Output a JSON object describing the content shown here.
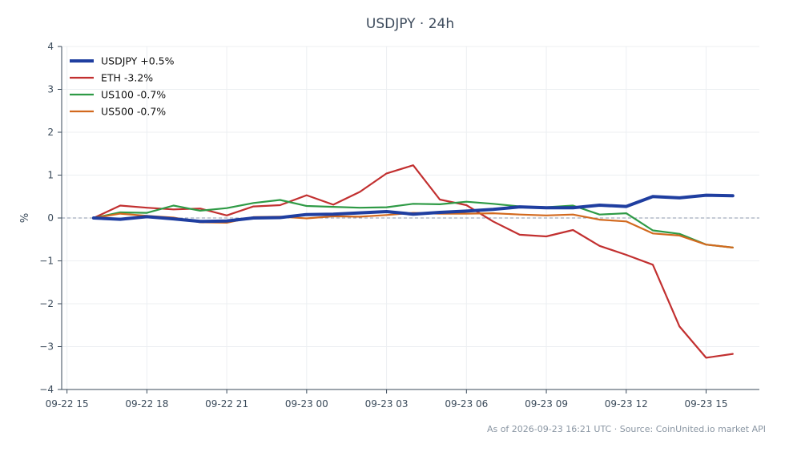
{
  "chart_data": {
    "type": "line",
    "title": "USDJPY · 24h",
    "xlabel": "",
    "ylabel": "%",
    "ylim": [
      -4,
      4
    ],
    "yticks": [
      "−4",
      "−3",
      "−2",
      "−1",
      "0",
      "1",
      "2",
      "3",
      "4"
    ],
    "xlim_hours": [
      -0.2,
      26.0
    ],
    "xticks": [
      {
        "hour": 0,
        "label": "09-22 15"
      },
      {
        "hour": 3,
        "label": "09-22 18"
      },
      {
        "hour": 6,
        "label": "09-22 21"
      },
      {
        "hour": 9,
        "label": "09-23 00"
      },
      {
        "hour": 12,
        "label": "09-23 03"
      },
      {
        "hour": 15,
        "label": "09-23 06"
      },
      {
        "hour": 18,
        "label": "09-23 09"
      },
      {
        "hour": 21,
        "label": "09-23 12"
      },
      {
        "hour": 24,
        "label": "09-23 15"
      }
    ],
    "x_hours": [
      1,
      2,
      3,
      4,
      5,
      6,
      7,
      8,
      9,
      10,
      11,
      12,
      13,
      14,
      15,
      16,
      17,
      18,
      19,
      20,
      21,
      22,
      23,
      24,
      25
    ],
    "baseline": 0,
    "grid": true,
    "legend_position": "top-left",
    "series": [
      {
        "name": "USDJPY +0.5%",
        "color": "#1f3ea0",
        "width": 4,
        "values": [
          0.0,
          -0.03,
          0.03,
          -0.02,
          -0.08,
          -0.07,
          0.0,
          0.01,
          0.08,
          0.09,
          0.12,
          0.15,
          0.09,
          0.13,
          0.16,
          0.2,
          0.26,
          0.24,
          0.24,
          0.3,
          0.27,
          0.5,
          0.47,
          0.53,
          0.52
        ]
      },
      {
        "name": "ETH -3.2%",
        "color": "#c23030",
        "width": 2.2,
        "values": [
          0.0,
          0.29,
          0.24,
          0.2,
          0.22,
          0.06,
          0.27,
          0.3,
          0.53,
          0.31,
          0.61,
          1.04,
          1.23,
          0.43,
          0.3,
          -0.08,
          -0.39,
          -0.43,
          -0.28,
          -0.65,
          -0.86,
          -1.09,
          -2.53,
          -3.26,
          -3.17
        ]
      },
      {
        "name": "US100 -0.7%",
        "color": "#2e9a45",
        "width": 2.2,
        "values": [
          0.0,
          0.13,
          0.12,
          0.29,
          0.17,
          0.23,
          0.35,
          0.42,
          0.28,
          0.26,
          0.24,
          0.25,
          0.33,
          0.32,
          0.38,
          0.33,
          0.27,
          0.25,
          0.29,
          0.08,
          0.11,
          -0.29,
          -0.37,
          -0.62,
          -0.69
        ]
      },
      {
        "name": "US500 -0.7%",
        "color": "#d2691e",
        "width": 2.2,
        "values": [
          0.0,
          0.1,
          0.05,
          0.01,
          -0.1,
          -0.11,
          0.02,
          0.03,
          -0.01,
          0.04,
          0.03,
          0.07,
          0.12,
          0.1,
          0.1,
          0.11,
          0.08,
          0.06,
          0.08,
          -0.04,
          -0.08,
          -0.36,
          -0.41,
          -0.62,
          -0.69
        ]
      }
    ]
  },
  "footer": {
    "note": "As of 2026-09-23 16:21 UTC · Source: CoinUnited.io market API"
  }
}
